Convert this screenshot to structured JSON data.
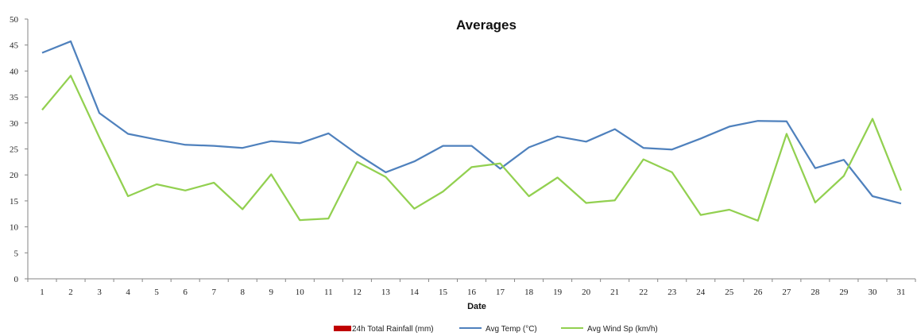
{
  "chart_data": {
    "type": "line",
    "title": "Averages",
    "xlabel": "Date",
    "ylabel": "",
    "ylim": [
      0,
      50
    ],
    "yticks": [
      0,
      5,
      10,
      15,
      20,
      25,
      30,
      35,
      40,
      45,
      50
    ],
    "grid": false,
    "legend_position": "bottom",
    "categories": [
      "1",
      "2",
      "3",
      "4",
      "5",
      "6",
      "7",
      "8",
      "9",
      "10",
      "11",
      "12",
      "13",
      "14",
      "15",
      "16",
      "17",
      "18",
      "19",
      "20",
      "21",
      "22",
      "23",
      "24",
      "25",
      "26",
      "27",
      "28",
      "29",
      "30",
      "31"
    ],
    "series": [
      {
        "name": "24h Total Rainfall (mm)",
        "type": "bar",
        "color": "#c00000",
        "values": [
          0,
          0,
          0,
          0,
          0,
          0,
          0,
          0,
          0,
          0,
          0,
          0,
          0,
          0,
          0,
          0,
          0,
          0,
          0,
          0,
          0,
          0,
          0,
          0,
          0,
          0,
          0,
          0,
          0,
          0,
          0
        ]
      },
      {
        "name": "Avg Temp (°C)",
        "type": "line",
        "color": "#4f81bd",
        "values": [
          43.5,
          45.7,
          31.9,
          27.9,
          26.8,
          25.8,
          25.6,
          25.2,
          26.5,
          26.1,
          28.0,
          24.0,
          20.5,
          22.6,
          25.6,
          25.6,
          21.2,
          25.3,
          27.4,
          26.4,
          28.8,
          25.2,
          24.9,
          27.0,
          29.3,
          30.4,
          30.3,
          21.3,
          22.9,
          15.9,
          14.5
        ]
      },
      {
        "name": "Avg Wind Sp (km/h)",
        "type": "line",
        "color": "#92d050",
        "values": [
          32.5,
          39.1,
          27.2,
          15.9,
          18.2,
          17.0,
          18.5,
          13.4,
          20.1,
          11.3,
          11.6,
          22.5,
          19.6,
          13.5,
          16.8,
          21.5,
          22.2,
          15.9,
          19.5,
          14.6,
          15.1,
          23.0,
          20.5,
          12.3,
          13.3,
          11.2,
          27.9,
          14.7,
          19.8,
          30.8,
          17.0
        ]
      }
    ]
  }
}
